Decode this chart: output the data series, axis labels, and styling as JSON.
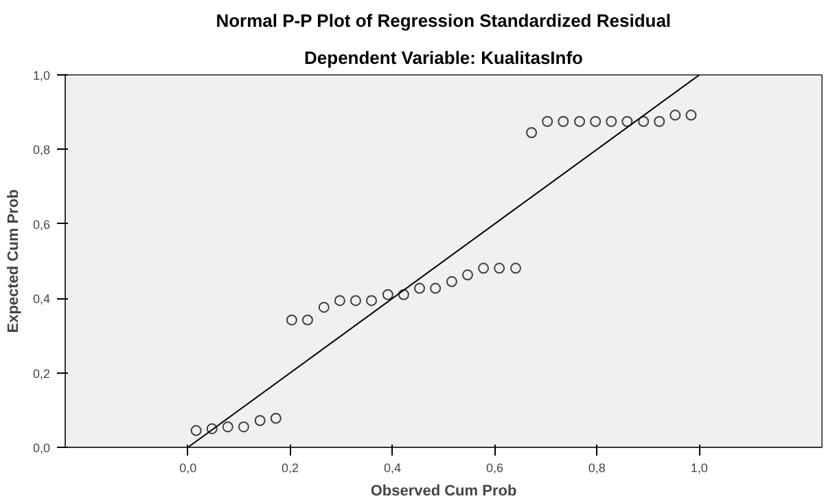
{
  "chart_data": {
    "type": "scatter",
    "title": "Normal P-P Plot of Regression Standardized Residual",
    "subtitle": "Dependent Variable: KualitasInfo",
    "xlabel": "Observed Cum Prob",
    "ylabel": "Expected Cum Prob",
    "xlim": [
      -0.24,
      1.24
    ],
    "ylim": [
      0,
      1
    ],
    "xticks": [
      {
        "value": 0,
        "label": "0,0"
      },
      {
        "value": 0.2,
        "label": "0,2"
      },
      {
        "value": 0.4,
        "label": "0,4"
      },
      {
        "value": 0.6,
        "label": "0,6"
      },
      {
        "value": 0.8,
        "label": "0,8"
      },
      {
        "value": 1,
        "label": "1,0"
      }
    ],
    "yticks": [
      {
        "value": 0,
        "label": "0,0"
      },
      {
        "value": 0.2,
        "label": "0,2"
      },
      {
        "value": 0.4,
        "label": "0,4"
      },
      {
        "value": 0.6,
        "label": "0,6"
      },
      {
        "value": 0.8,
        "label": "0,8"
      },
      {
        "value": 1,
        "label": "1,0"
      }
    ],
    "grid": false,
    "marker": "circle",
    "series": [
      {
        "color": "#404040",
        "x": [
          0.016,
          0.047,
          0.078,
          0.109,
          0.141,
          0.172,
          0.203,
          0.234,
          0.266,
          0.297,
          0.328,
          0.359,
          0.391,
          0.422,
          0.453,
          0.484,
          0.516,
          0.547,
          0.578,
          0.609,
          0.641,
          0.672,
          0.703,
          0.734,
          0.766,
          0.797,
          0.828,
          0.859,
          0.891,
          0.922,
          0.953,
          0.984
        ],
        "values": [
          0.045,
          0.05,
          0.055,
          0.055,
          0.072,
          0.078,
          0.342,
          0.342,
          0.376,
          0.394,
          0.394,
          0.394,
          0.41,
          0.41,
          0.427,
          0.427,
          0.445,
          0.463,
          0.481,
          0.481,
          0.481,
          0.845,
          0.875,
          0.875,
          0.875,
          0.875,
          0.875,
          0.875,
          0.875,
          0.875,
          0.892,
          0.892
        ]
      },
      {
        "type": "line",
        "marker": "none",
        "color": "#000000",
        "x": [
          0,
          1
        ],
        "values": [
          0,
          1
        ]
      }
    ]
  }
}
